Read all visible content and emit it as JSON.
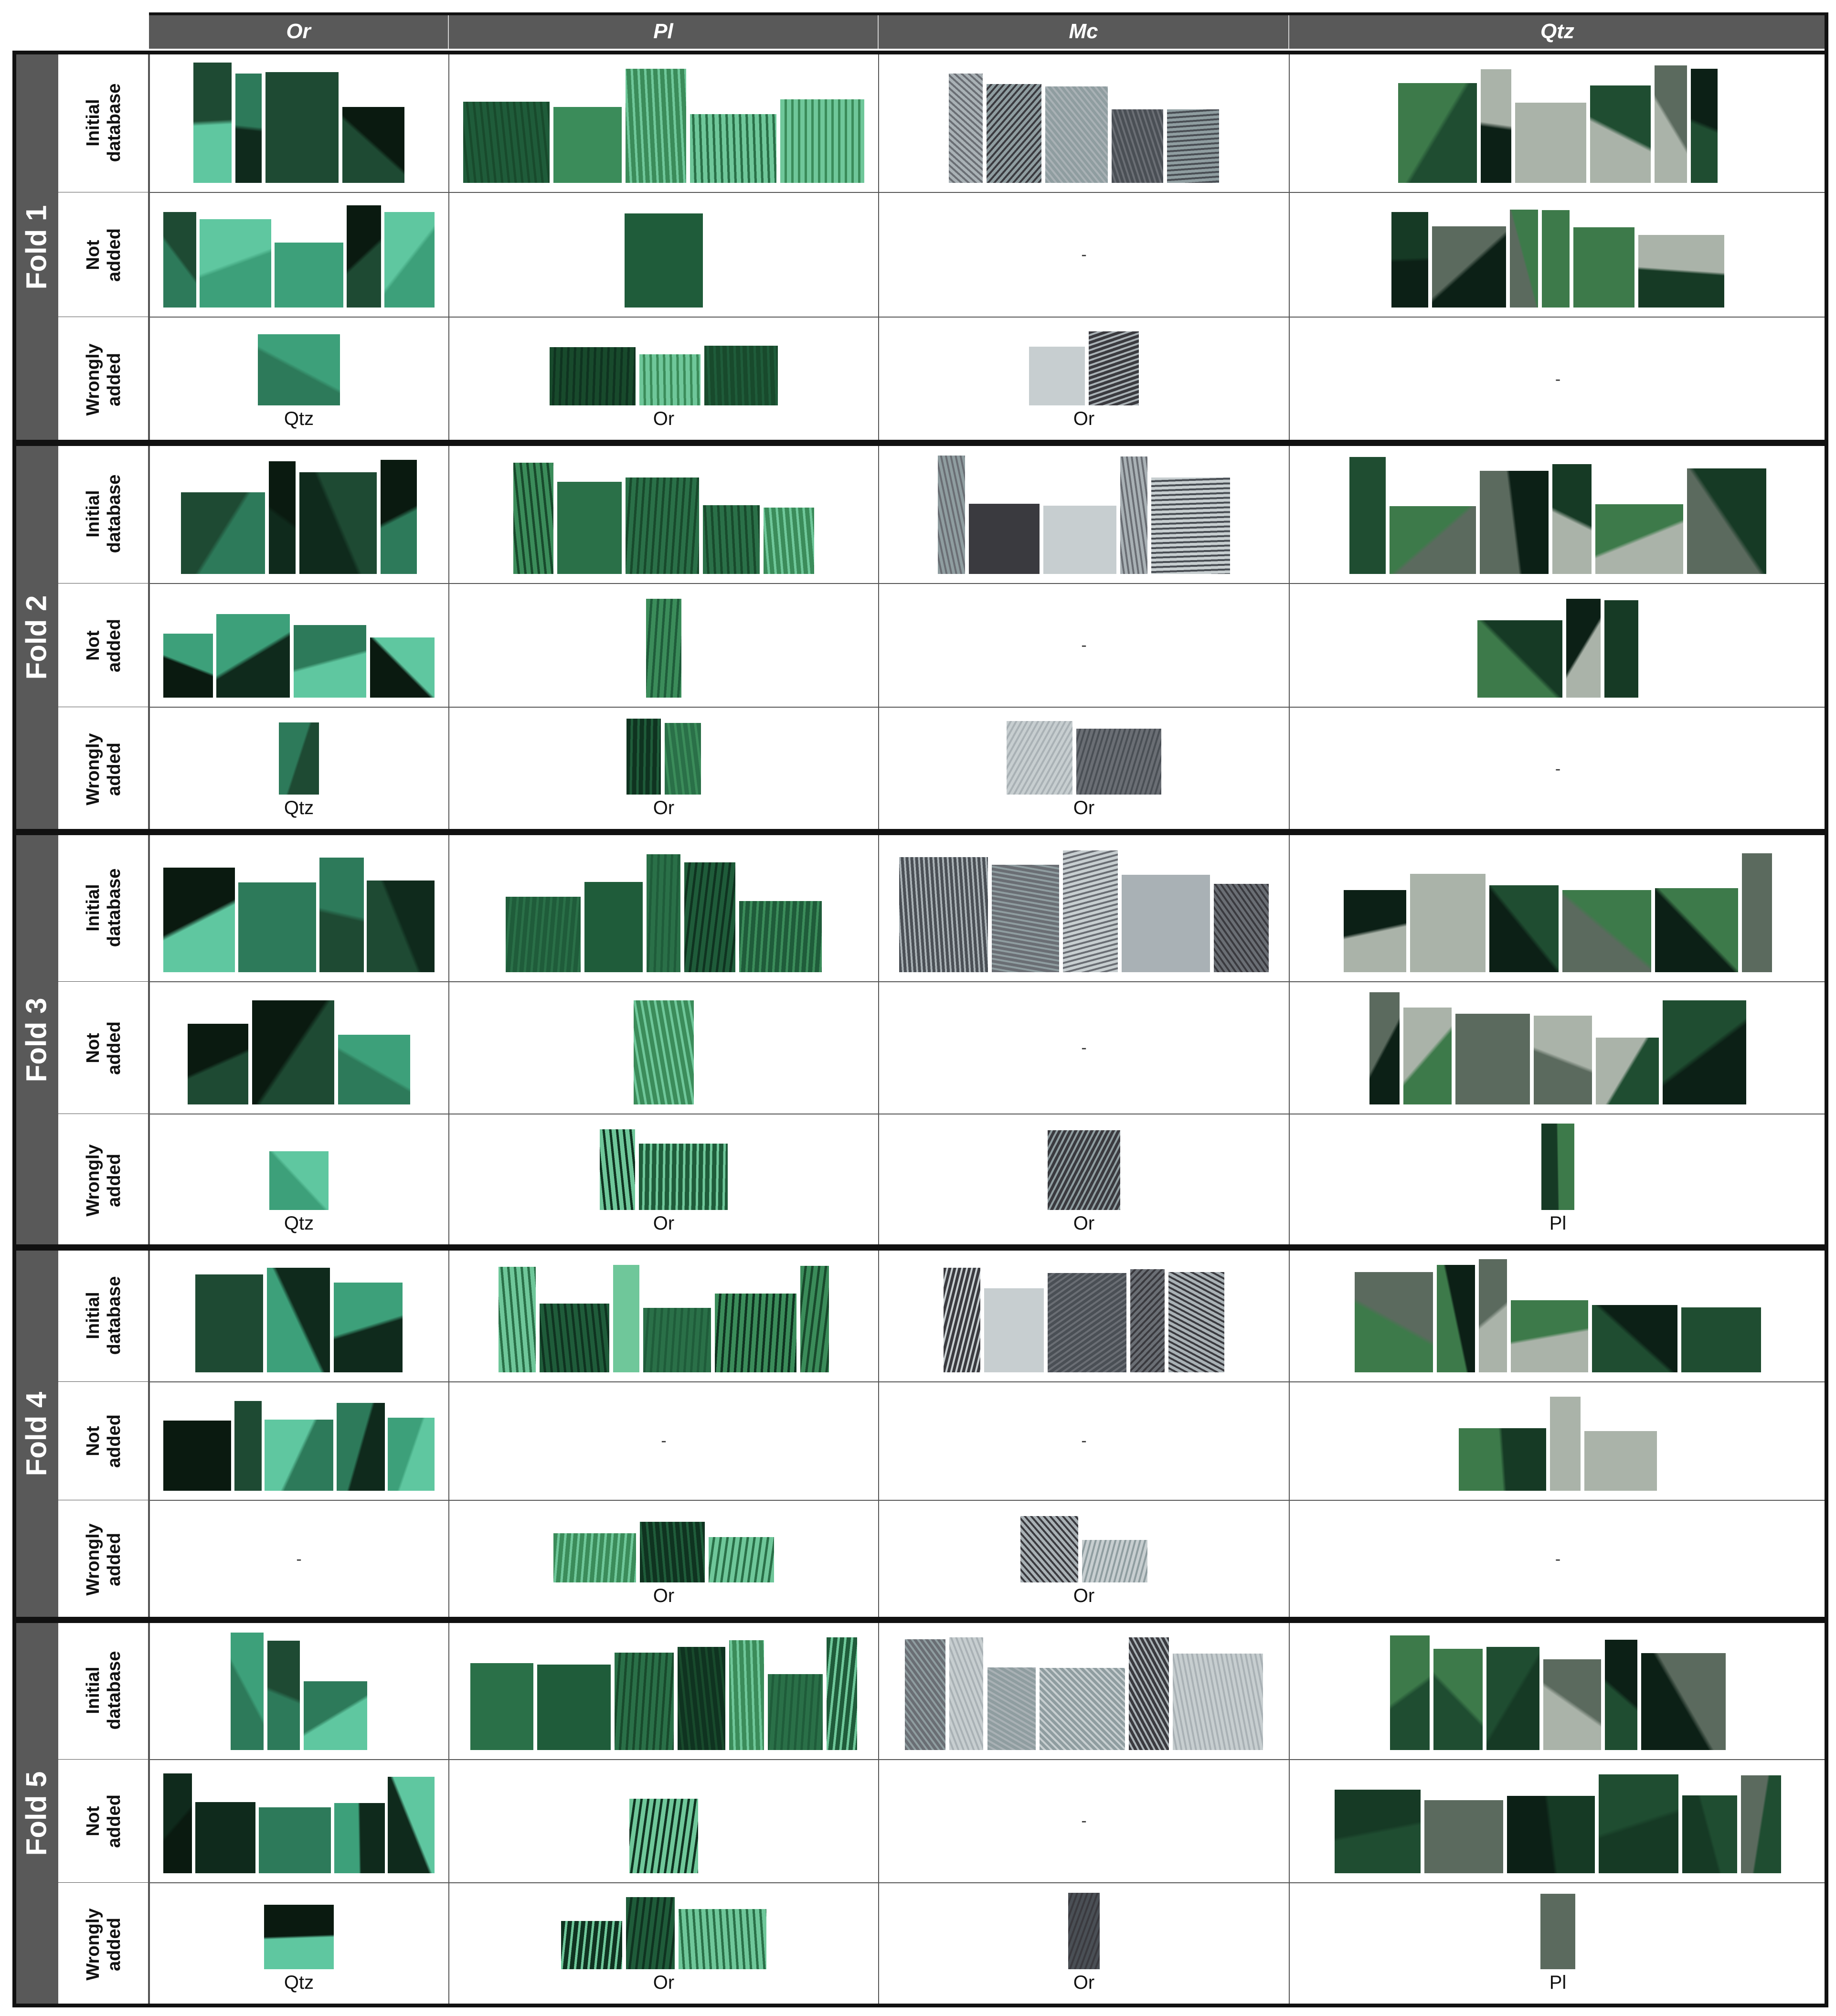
{
  "columns": [
    {
      "key": "or",
      "label": "Or"
    },
    {
      "key": "pl",
      "label": "Pl"
    },
    {
      "key": "mc",
      "label": "Mc"
    },
    {
      "key": "qtz",
      "label": "Qtz"
    }
  ],
  "row_labels": {
    "initial": "Initial\ndatabase",
    "not_added": "Not\nadded",
    "wrongly": "Wrongly\nadded"
  },
  "empty_mark": "-",
  "palette": {
    "or": [
      "#0f2a1c",
      "#1e4a33",
      "#2d7a5a",
      "#3da07a",
      "#5fc7a0",
      "#0a1a10"
    ],
    "pl": [
      "#1f5c3a",
      "#3b8c5a",
      "#2a7048",
      "#6fc79a",
      "#184a2c",
      "#0f3320"
    ],
    "mc": [
      "#3a3a3f",
      "#6a6e74",
      "#a9b1b5",
      "#8f9da0",
      "#c7ced0",
      "#4a4f55"
    ],
    "qtz": [
      "#0c2016",
      "#163a25",
      "#1f4d31",
      "#3d7a4a",
      "#aab3a9",
      "#5b6a5e"
    ],
    "pl_misc": [
      "#2c3540",
      "#3e4a56"
    ]
  },
  "folds": [
    {
      "label": "Fold 1",
      "rows": [
        {
          "type": "initial",
          "cells": [
            {
              "tiles": 4,
              "tag": ""
            },
            {
              "tiles": 5,
              "tag": ""
            },
            {
              "tiles": 5,
              "tag": ""
            },
            {
              "tiles": 6,
              "tag": ""
            }
          ]
        },
        {
          "type": "not_added",
          "cells": [
            {
              "tiles": 5,
              "tag": ""
            },
            {
              "tiles": 1,
              "tag": ""
            },
            {
              "tiles": 0,
              "tag": ""
            },
            {
              "tiles": 6,
              "tag": ""
            }
          ]
        },
        {
          "type": "wrongly",
          "cells": [
            {
              "tiles": 1,
              "tag": "Qtz"
            },
            {
              "tiles": 3,
              "tag": "Or"
            },
            {
              "tiles": 2,
              "tag": "Or"
            },
            {
              "tiles": 0,
              "tag": ""
            }
          ]
        }
      ]
    },
    {
      "label": "Fold 2",
      "rows": [
        {
          "type": "initial",
          "cells": [
            {
              "tiles": 4,
              "tag": ""
            },
            {
              "tiles": 5,
              "tag": ""
            },
            {
              "tiles": 5,
              "tag": ""
            },
            {
              "tiles": 6,
              "tag": ""
            }
          ]
        },
        {
          "type": "not_added",
          "cells": [
            {
              "tiles": 4,
              "tag": ""
            },
            {
              "tiles": 1,
              "tag": ""
            },
            {
              "tiles": 0,
              "tag": ""
            },
            {
              "tiles": 3,
              "tag": ""
            }
          ]
        },
        {
          "type": "wrongly",
          "cells": [
            {
              "tiles": 1,
              "tag": "Qtz"
            },
            {
              "tiles": 2,
              "tag": "Or"
            },
            {
              "tiles": 2,
              "tag": "Or"
            },
            {
              "tiles": 0,
              "tag": ""
            }
          ]
        }
      ]
    },
    {
      "label": "Fold 3",
      "rows": [
        {
          "type": "initial",
          "cells": [
            {
              "tiles": 4,
              "tag": ""
            },
            {
              "tiles": 5,
              "tag": ""
            },
            {
              "tiles": 5,
              "tag": ""
            },
            {
              "tiles": 6,
              "tag": ""
            }
          ]
        },
        {
          "type": "not_added",
          "cells": [
            {
              "tiles": 3,
              "tag": ""
            },
            {
              "tiles": 1,
              "tag": ""
            },
            {
              "tiles": 0,
              "tag": ""
            },
            {
              "tiles": 6,
              "tag": ""
            }
          ]
        },
        {
          "type": "wrongly",
          "cells": [
            {
              "tiles": 1,
              "tag": "Qtz"
            },
            {
              "tiles": 2,
              "tag": "Or"
            },
            {
              "tiles": 1,
              "tag": "Or"
            },
            {
              "tiles": 1,
              "tag": "Pl"
            }
          ]
        }
      ]
    },
    {
      "label": "Fold 4",
      "rows": [
        {
          "type": "initial",
          "cells": [
            {
              "tiles": 3,
              "tag": ""
            },
            {
              "tiles": 6,
              "tag": ""
            },
            {
              "tiles": 5,
              "tag": ""
            },
            {
              "tiles": 6,
              "tag": ""
            }
          ]
        },
        {
          "type": "not_added",
          "cells": [
            {
              "tiles": 5,
              "tag": ""
            },
            {
              "tiles": 0,
              "tag": ""
            },
            {
              "tiles": 0,
              "tag": ""
            },
            {
              "tiles": 3,
              "tag": ""
            }
          ]
        },
        {
          "type": "wrongly",
          "cells": [
            {
              "tiles": 0,
              "tag": ""
            },
            {
              "tiles": 3,
              "tag": "Or"
            },
            {
              "tiles": 2,
              "tag": "Or"
            },
            {
              "tiles": 0,
              "tag": ""
            }
          ]
        }
      ]
    },
    {
      "label": "Fold 5",
      "rows": [
        {
          "type": "initial",
          "cells": [
            {
              "tiles": 3,
              "tag": ""
            },
            {
              "tiles": 7,
              "tag": ""
            },
            {
              "tiles": 6,
              "tag": ""
            },
            {
              "tiles": 6,
              "tag": ""
            }
          ]
        },
        {
          "type": "not_added",
          "cells": [
            {
              "tiles": 5,
              "tag": ""
            },
            {
              "tiles": 1,
              "tag": ""
            },
            {
              "tiles": 0,
              "tag": ""
            },
            {
              "tiles": 6,
              "tag": ""
            }
          ]
        },
        {
          "type": "wrongly",
          "cells": [
            {
              "tiles": 1,
              "tag": "Qtz"
            },
            {
              "tiles": 3,
              "tag": "Or"
            },
            {
              "tiles": 1,
              "tag": "Or"
            },
            {
              "tiles": 1,
              "tag": "Pl"
            }
          ]
        }
      ]
    }
  ]
}
